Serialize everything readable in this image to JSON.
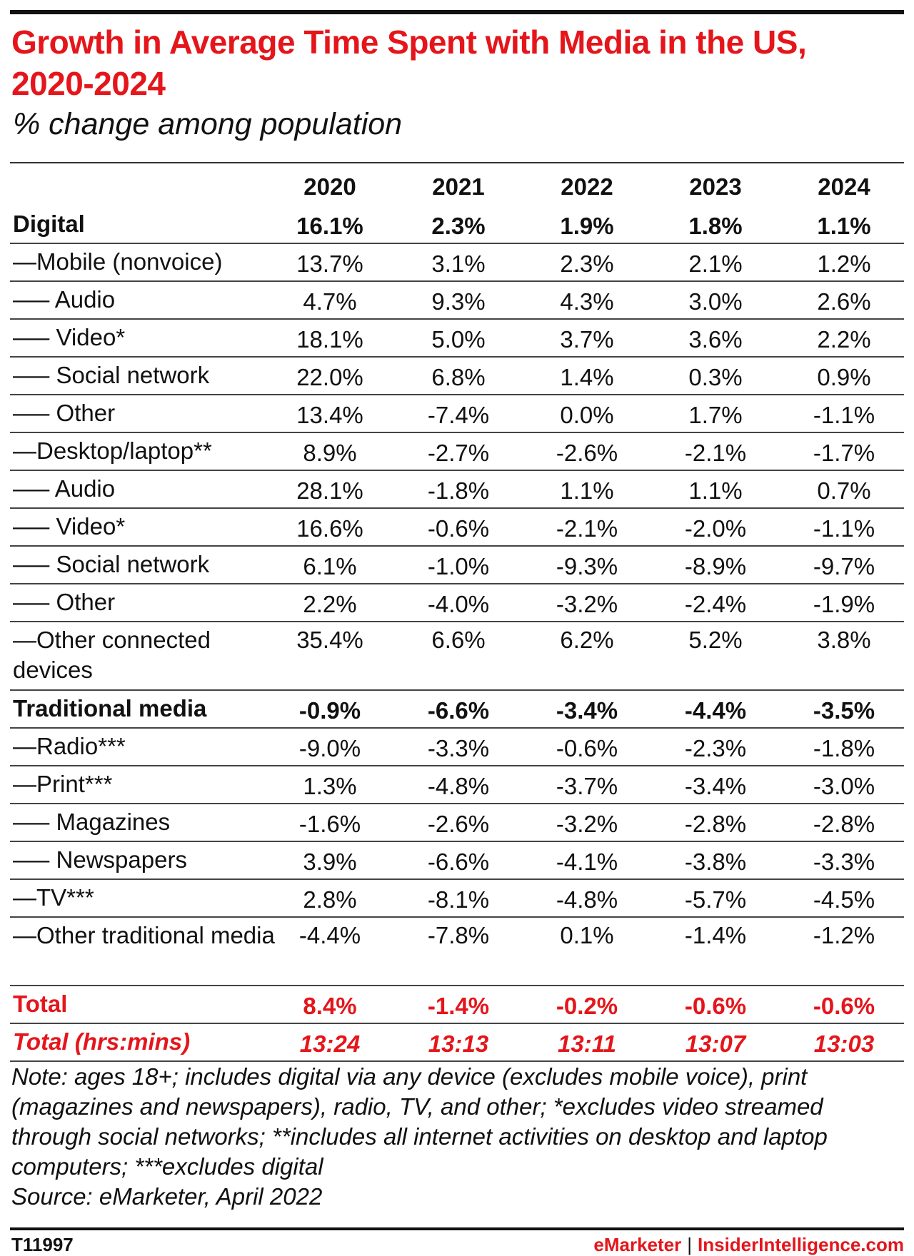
{
  "title": "Growth in Average Time Spent with Media in the US, 2020-2024",
  "subtitle": "% change among population",
  "chart_data": {
    "type": "table",
    "columns": [
      "2020",
      "2021",
      "2022",
      "2023",
      "2024"
    ],
    "rows": [
      {
        "label": "Digital",
        "values": [
          "16.1%",
          "2.3%",
          "1.9%",
          "1.8%",
          "1.1%"
        ],
        "style": "bold"
      },
      {
        "label": "—Mobile (nonvoice)",
        "values": [
          "13.7%",
          "3.1%",
          "2.3%",
          "2.1%",
          "1.2%"
        ],
        "style": "normal"
      },
      {
        "label": "—– Audio",
        "values": [
          "4.7%",
          "9.3%",
          "4.3%",
          "3.0%",
          "2.6%"
        ],
        "style": "normal"
      },
      {
        "label": "—– Video*",
        "values": [
          "18.1%",
          "5.0%",
          "3.7%",
          "3.6%",
          "2.2%"
        ],
        "style": "normal"
      },
      {
        "label": "—– Social network",
        "values": [
          "22.0%",
          "6.8%",
          "1.4%",
          "0.3%",
          "0.9%"
        ],
        "style": "normal"
      },
      {
        "label": "—– Other",
        "values": [
          "13.4%",
          "-7.4%",
          "0.0%",
          "1.7%",
          "-1.1%"
        ],
        "style": "normal"
      },
      {
        "label": "—Desktop/laptop**",
        "values": [
          "8.9%",
          "-2.7%",
          "-2.6%",
          "-2.1%",
          "-1.7%"
        ],
        "style": "normal"
      },
      {
        "label": "—– Audio",
        "values": [
          "28.1%",
          "-1.8%",
          "1.1%",
          "1.1%",
          "0.7%"
        ],
        "style": "normal"
      },
      {
        "label": "—– Video*",
        "values": [
          "16.6%",
          "-0.6%",
          "-2.1%",
          "-2.0%",
          "-1.1%"
        ],
        "style": "normal"
      },
      {
        "label": "—– Social network",
        "values": [
          "6.1%",
          "-1.0%",
          "-9.3%",
          "-8.9%",
          "-9.7%"
        ],
        "style": "normal"
      },
      {
        "label": "—– Other",
        "values": [
          "2.2%",
          "-4.0%",
          "-3.2%",
          "-2.4%",
          "-1.9%"
        ],
        "style": "normal"
      },
      {
        "label": "—Other connected devices",
        "values": [
          "35.4%",
          "6.6%",
          "6.2%",
          "5.2%",
          "3.8%"
        ],
        "style": "tall"
      },
      {
        "label": "Traditional media",
        "values": [
          "-0.9%",
          "-6.6%",
          "-3.4%",
          "-4.4%",
          "-3.5%"
        ],
        "style": "bold"
      },
      {
        "label": "—Radio***",
        "values": [
          "-9.0%",
          "-3.3%",
          "-0.6%",
          "-2.3%",
          "-1.8%"
        ],
        "style": "normal"
      },
      {
        "label": "—Print***",
        "values": [
          "1.3%",
          "-4.8%",
          "-3.7%",
          "-3.4%",
          "-3.0%"
        ],
        "style": "normal"
      },
      {
        "label": "—– Magazines",
        "values": [
          "-1.6%",
          "-2.6%",
          "-3.2%",
          "-2.8%",
          "-2.8%"
        ],
        "style": "normal"
      },
      {
        "label": "—– Newspapers",
        "values": [
          "3.9%",
          "-6.6%",
          "-4.1%",
          "-3.8%",
          "-3.3%"
        ],
        "style": "normal"
      },
      {
        "label": "—TV***",
        "values": [
          "2.8%",
          "-8.1%",
          "-4.8%",
          "-5.7%",
          "-4.5%"
        ],
        "style": "normal"
      },
      {
        "label": "—Other traditional media",
        "values": [
          "-4.4%",
          "-7.8%",
          "0.1%",
          "-1.4%",
          "-1.2%"
        ],
        "style": "tall"
      },
      {
        "label": "Total",
        "values": [
          "8.4%",
          "-1.4%",
          "-0.2%",
          "-0.6%",
          "-0.6%"
        ],
        "style": "red"
      },
      {
        "label": "Total (hrs:mins)",
        "values": [
          "13:24",
          "13:13",
          "13:11",
          "13:07",
          "13:03"
        ],
        "style": "red-it"
      }
    ]
  },
  "note": "Note: ages 18+; includes digital via any device (excludes mobile voice), print (magazines and newspapers), radio, TV, and other; *excludes video streamed through social networks; **includes all internet activities on desktop and laptop computers; ***excludes digital",
  "source": "Source: eMarketer, April 2022",
  "footer": {
    "chart_id": "T11997",
    "brand_left": "eMarketer",
    "separator": "|",
    "brand_right": "InsiderIntelligence.com"
  },
  "colors": {
    "accent": "#e4161b",
    "text": "#111111",
    "rule": "#444444"
  }
}
